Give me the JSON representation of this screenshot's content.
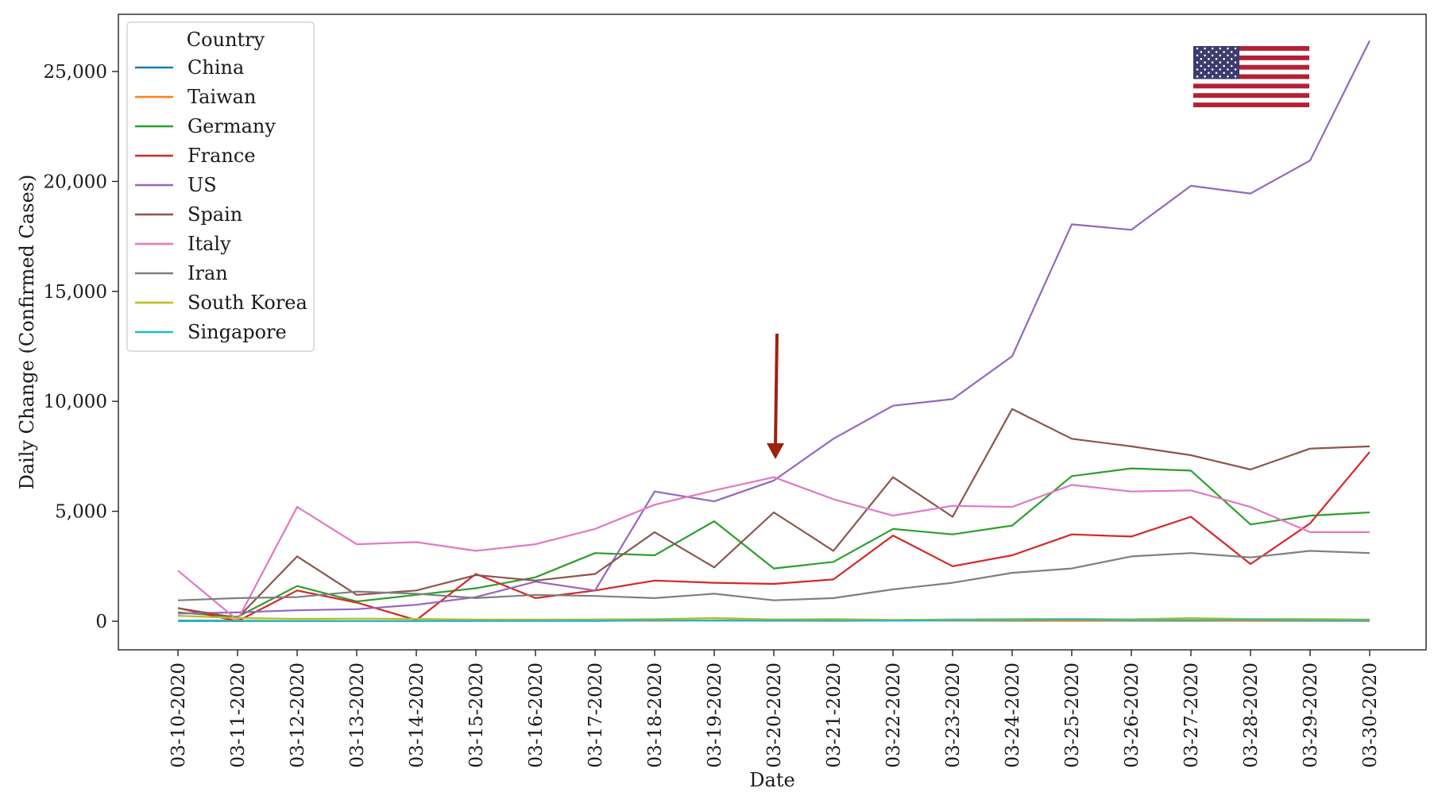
{
  "chart_data": {
    "type": "line",
    "xlabel": "Date",
    "ylabel": "Daily Change (Confirmed Cases)",
    "x": [
      "03-10-2020",
      "03-11-2020",
      "03-12-2020",
      "03-13-2020",
      "03-14-2020",
      "03-15-2020",
      "03-16-2020",
      "03-17-2020",
      "03-18-2020",
      "03-19-2020",
      "03-20-2020",
      "03-21-2020",
      "03-22-2020",
      "03-23-2020",
      "03-24-2020",
      "03-25-2020",
      "03-26-2020",
      "03-27-2020",
      "03-28-2020",
      "03-29-2020",
      "03-30-2020"
    ],
    "ylim": [
      -1300,
      27600
    ],
    "yticks": [
      0,
      5000,
      10000,
      15000,
      20000,
      25000
    ],
    "ytick_labels": [
      "0",
      "5,000",
      "10,000",
      "15,000",
      "20,000",
      "25,000"
    ],
    "grid": false,
    "legend": {
      "title": "Country",
      "placement": "top-left"
    },
    "series": [
      {
        "name": "China",
        "color": "#1f77b4",
        "values": [
          30,
          25,
          15,
          10,
          20,
          25,
          20,
          15,
          35,
          40,
          40,
          45,
          40,
          80,
          70,
          65,
          55,
          55,
          45,
          30,
          35
        ]
      },
      {
        "name": "Taiwan",
        "color": "#ff7f0e",
        "values": [
          2,
          5,
          3,
          5,
          8,
          12,
          10,
          24,
          23,
          27,
          18,
          16,
          26,
          26,
          20,
          17,
          17,
          15,
          17,
          14,
          8
        ]
      },
      {
        "name": "Germany",
        "color": "#2ca02c",
        "values": [
          400,
          200,
          1600,
          900,
          1200,
          1500,
          2000,
          3100,
          3000,
          4550,
          2400,
          2700,
          4200,
          3950,
          4350,
          6600,
          6950,
          6850,
          4400,
          4800,
          4950
        ]
      },
      {
        "name": "France",
        "color": "#d62728",
        "values": [
          600,
          0,
          1400,
          850,
          50,
          2150,
          1050,
          1400,
          1850,
          1750,
          1700,
          1900,
          3900,
          2500,
          3000,
          3950,
          3850,
          4750,
          2600,
          4450,
          7700
        ]
      },
      {
        "name": "US",
        "color": "#9467bd",
        "values": [
          350,
          400,
          500,
          550,
          750,
          1100,
          1800,
          1400,
          5900,
          5450,
          6400,
          8300,
          9800,
          10100,
          12050,
          18050,
          17800,
          19800,
          19450,
          20950,
          26400
        ]
      },
      {
        "name": "Spain",
        "color": "#8c564b",
        "values": [
          600,
          150,
          2950,
          1200,
          1400,
          2100,
          1850,
          2150,
          4050,
          2450,
          4950,
          3200,
          6550,
          4750,
          9650,
          8300,
          7950,
          7550,
          6900,
          7850,
          7950
        ]
      },
      {
        "name": "Italy",
        "color": "#e377c2",
        "values": [
          2300,
          50,
          5200,
          3500,
          3600,
          3200,
          3500,
          4200,
          5300,
          5950,
          6550,
          5550,
          4800,
          5250,
          5200,
          6200,
          5900,
          5950,
          5200,
          4050,
          4050
        ]
      },
      {
        "name": "Iran",
        "color": "#7f7f7f",
        "values": [
          950,
          1050,
          1100,
          1350,
          1250,
          1050,
          1200,
          1150,
          1050,
          1250,
          950,
          1050,
          1450,
          1750,
          2200,
          2400,
          2950,
          3100,
          2900,
          3200,
          3100
        ]
      },
      {
        "name": "South Korea",
        "color": "#bcbd22",
        "values": [
          250,
          150,
          110,
          120,
          105,
          80,
          75,
          85,
          95,
          150,
          85,
          100,
          65,
          75,
          100,
          105,
          90,
          145,
          100,
          105,
          80
        ]
      },
      {
        "name": "Singapore",
        "color": "#17becf",
        "values": [
          5,
          10,
          10,
          10,
          15,
          15,
          20,
          25,
          50,
          30,
          40,
          40,
          25,
          50,
          55,
          75,
          50,
          50,
          70,
          40,
          40
        ]
      }
    ]
  }
}
